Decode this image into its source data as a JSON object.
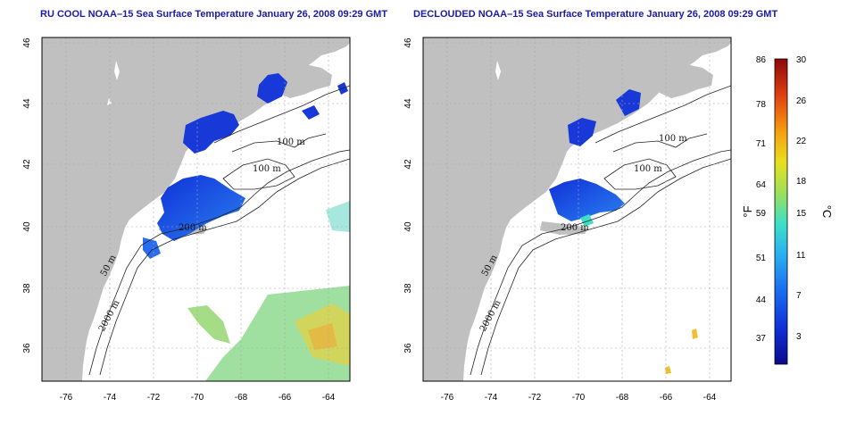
{
  "left_panel": {
    "title": "RU COOL NOAA–15 Sea Surface Temperature January 26, 2008 09:29 GMT"
  },
  "right_panel": {
    "title": "DECLOUDED NOAA–15 Sea Surface Temperature January 26, 2008 09:29 GMT"
  },
  "axes": {
    "lon_ticks": [
      "-76",
      "-74",
      "-72",
      "-70",
      "-68",
      "-66",
      "-64"
    ],
    "lat_ticks": [
      "46",
      "44",
      "42",
      "40",
      "38",
      "36"
    ]
  },
  "contour_labels": {
    "left": [
      "100 m",
      "100 m",
      "200 m",
      "50 m",
      "2000 m"
    ],
    "right": [
      "100 m",
      "100 m",
      "200 m",
      "50 m",
      "2000 m"
    ]
  },
  "colorbar": {
    "f_label": "°F",
    "c_label": "°C",
    "f_ticks": [
      "86",
      "78",
      "71",
      "64",
      "59",
      "51",
      "44",
      "37"
    ],
    "c_ticks": [
      "30",
      "26",
      "22",
      "18",
      "15",
      "11",
      "7",
      "3"
    ],
    "colors": [
      "#0a0a8c",
      "#1030d8",
      "#1a6cf0",
      "#2ab0f0",
      "#3ce0c8",
      "#9be05a",
      "#e8e020",
      "#f5a010",
      "#e04010",
      "#8c0808"
    ]
  },
  "colors": {
    "land": "#c0c0c0",
    "water": "#ffffff",
    "grid": "#a8a8a8",
    "title": "#1a1aa8"
  }
}
